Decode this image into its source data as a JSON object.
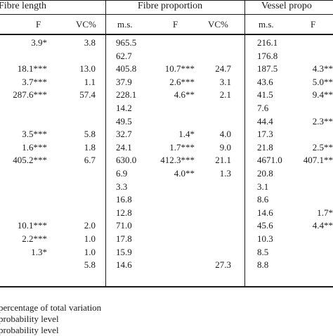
{
  "headers": {
    "fibre_length": "Fibre length",
    "fibre_proportion": "Fibre proportion",
    "vessel_proportion": "Vessel propo"
  },
  "subheaders": {
    "fl_f": "F",
    "fl_vc": "VC%",
    "fp_ms": "m.s.",
    "fp_f": "F",
    "fp_vc": "VC%",
    "vp_ms": "m.s.",
    "vp_f": "F"
  },
  "rows": [
    {
      "fl_f": "3.9*",
      "fl_vc": "3.8",
      "fp_ms": "965.5",
      "fp_f": "",
      "fp_vc": "",
      "vp_ms": "216.1",
      "vp_f": ""
    },
    {
      "fl_f": "",
      "fl_vc": "",
      "fp_ms": "62.7",
      "fp_f": "",
      "fp_vc": "",
      "vp_ms": "176.8",
      "vp_f": ""
    },
    {
      "fl_f": "18.1***",
      "fl_vc": "13.0",
      "fp_ms": "405.8",
      "fp_f": "10.7***",
      "fp_vc": "24.7",
      "vp_ms": "187.5",
      "vp_f": "4.3**"
    },
    {
      "fl_f": "3.7***",
      "fl_vc": "1.1",
      "fp_ms": "37.9",
      "fp_f": "2.6***",
      "fp_vc": "3.1",
      "vp_ms": "43.6",
      "vp_f": "5.0**"
    },
    {
      "fl_f": "287.6***",
      "fl_vc": "57.4",
      "fp_ms": "228.1",
      "fp_f": "4.6**",
      "fp_vc": "2.1",
      "vp_ms": "41.5",
      "vp_f": "9.4**"
    },
    {
      "fl_f": "",
      "fl_vc": "",
      "fp_ms": "14.2",
      "fp_f": "",
      "fp_vc": "",
      "vp_ms": "7.6",
      "vp_f": ""
    },
    {
      "fl_f": "",
      "fl_vc": "",
      "fp_ms": "49.5",
      "fp_f": "",
      "fp_vc": "",
      "vp_ms": "44.4",
      "vp_f": "2.3**"
    },
    {
      "fl_f": "3.5***",
      "fl_vc": "5.8",
      "fp_ms": "32.7",
      "fp_f": "1.4*",
      "fp_vc": "4.0",
      "vp_ms": "17.3",
      "vp_f": ""
    },
    {
      "fl_f": "1.6***",
      "fl_vc": "1.8",
      "fp_ms": "24.1",
      "fp_f": "1.7***",
      "fp_vc": "9.0",
      "vp_ms": "21.8",
      "vp_f": "2.5**"
    },
    {
      "fl_f": "405.2***",
      "fl_vc": "6.7",
      "fp_ms": "630.0",
      "fp_f": "412.3***",
      "fp_vc": "21.1",
      "vp_ms": "4671.0",
      "vp_f": "407.1**"
    },
    {
      "fl_f": "",
      "fl_vc": "",
      "fp_ms": "6.9",
      "fp_f": "4.0**",
      "fp_vc": "1.3",
      "vp_ms": "20.8",
      "vp_f": ""
    },
    {
      "fl_f": "",
      "fl_vc": "",
      "fp_ms": "3.3",
      "fp_f": "",
      "fp_vc": "",
      "vp_ms": "3.1",
      "vp_f": ""
    },
    {
      "fl_f": "",
      "fl_vc": "",
      "fp_ms": "16.8",
      "fp_f": "",
      "fp_vc": "",
      "vp_ms": "8.6",
      "vp_f": ""
    },
    {
      "fl_f": "",
      "fl_vc": "",
      "fp_ms": "12.8",
      "fp_f": "",
      "fp_vc": "",
      "vp_ms": "14.6",
      "vp_f": "1.7*"
    },
    {
      "fl_f": "10.1***",
      "fl_vc": "2.0",
      "fp_ms": "71.0",
      "fp_f": "",
      "fp_vc": "",
      "vp_ms": "45.6",
      "vp_f": "4.4**"
    },
    {
      "fl_f": "2.2***",
      "fl_vc": "1.0",
      "fp_ms": "17.8",
      "fp_f": "",
      "fp_vc": "",
      "vp_ms": "10.3",
      "vp_f": ""
    },
    {
      "fl_f": "1.3*",
      "fl_vc": "1.0",
      "fp_ms": "15.9",
      "fp_f": "",
      "fp_vc": "",
      "vp_ms": "8.5",
      "vp_f": ""
    },
    {
      "fl_f": "",
      "fl_vc": "5.8",
      "fp_ms": "14.6",
      "fp_f": "",
      "fp_vc": "27.3",
      "vp_ms": "8.8",
      "vp_f": ""
    }
  ],
  "footnotes": [
    "percentage of total variation",
    "probability level",
    "probability level"
  ]
}
